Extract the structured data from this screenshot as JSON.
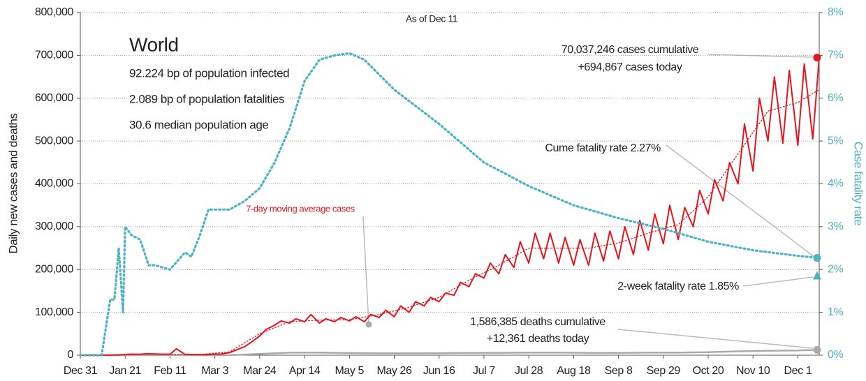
{
  "chart_data": {
    "type": "line",
    "subtitle": "As of Dec 11",
    "title": "World",
    "notes": [
      "92.224 bp of population infected",
      "2.089 bp of population fatalities",
      "30.6 median population age"
    ],
    "ylabel": "Daily new cases and deaths",
    "y2label": "Case fatality rate",
    "xlim": [
      0,
      346
    ],
    "xticks": [
      {
        "value": 0,
        "label": "Dec 31"
      },
      {
        "value": 21,
        "label": "Jan 21"
      },
      {
        "value": 42,
        "label": "Feb 11"
      },
      {
        "value": 63,
        "label": "Mar 3"
      },
      {
        "value": 84,
        "label": "Mar 24"
      },
      {
        "value": 105,
        "label": "Apr 14"
      },
      {
        "value": 126,
        "label": "May 5"
      },
      {
        "value": 147,
        "label": "May 26"
      },
      {
        "value": 168,
        "label": "Jun 16"
      },
      {
        "value": 189,
        "label": "Jul 7"
      },
      {
        "value": 210,
        "label": "Jul 28"
      },
      {
        "value": 231,
        "label": "Aug 18"
      },
      {
        "value": 252,
        "label": "Sep 8"
      },
      {
        "value": 273,
        "label": "Sep 29"
      },
      {
        "value": 294,
        "label": "Oct 20"
      },
      {
        "value": 315,
        "label": "Nov 10"
      },
      {
        "value": 336,
        "label": "Dec 1"
      }
    ],
    "ylim": [
      0,
      800000
    ],
    "yticks": [
      0,
      {
        "value": 100000,
        "label": "100,000"
      },
      {
        "value": 200000,
        "label": "200,000"
      },
      {
        "value": 300000,
        "label": "300,000"
      },
      {
        "value": 400000,
        "label": "400,000"
      },
      {
        "value": 500000,
        "label": "500,000"
      },
      {
        "value": 600000,
        "label": "600,000"
      },
      {
        "value": 700000,
        "label": "700,000"
      },
      {
        "value": 800000,
        "label": "800,000"
      }
    ],
    "y2lim": [
      0,
      8
    ],
    "y2ticks": [
      {
        "value": 0,
        "label": "0%"
      },
      {
        "value": 1,
        "label": "1%"
      },
      {
        "value": 2,
        "label": "2%"
      },
      {
        "value": 3,
        "label": "3%"
      },
      {
        "value": 4,
        "label": "4%"
      },
      {
        "value": 5,
        "label": "5%"
      },
      {
        "value": 6,
        "label": "6%"
      },
      {
        "value": 7,
        "label": "7%"
      },
      {
        "value": 8,
        "label": "8%"
      }
    ],
    "grid": true,
    "series": [
      {
        "color": "#aaaaaa",
        "dash": false,
        "width": 2.5,
        "x": [
          0,
          14,
          28,
          42,
          56,
          70,
          84,
          98,
          112,
          126,
          140,
          154,
          168,
          182,
          196,
          210,
          224,
          238,
          252,
          266,
          280,
          294,
          308,
          322,
          336,
          346
        ],
        "values": [
          0,
          0,
          50,
          100,
          50,
          200,
          3000,
          6000,
          6000,
          5000,
          4500,
          4500,
          4800,
          5500,
          5500,
          6000,
          6000,
          5500,
          5500,
          6000,
          6000,
          7000,
          9000,
          10500,
          11000,
          12361
        ]
      },
      {
        "color": "#e8141b",
        "dash": false,
        "width": 2,
        "x": [
          0,
          3,
          7,
          10,
          14,
          17,
          21,
          24,
          28,
          31,
          35,
          38,
          42,
          45,
          49,
          52,
          56,
          59,
          63,
          66,
          70,
          73,
          77,
          80,
          84,
          87,
          91,
          94,
          98,
          101,
          105,
          108,
          112,
          115,
          119,
          122,
          126,
          129,
          133,
          136,
          140,
          143,
          147,
          150,
          154,
          157,
          161,
          164,
          168,
          171,
          175,
          178,
          182,
          185,
          189,
          192,
          196,
          199,
          203,
          206,
          210,
          213,
          217,
          220,
          224,
          227,
          231,
          234,
          238,
          241,
          245,
          248,
          252,
          255,
          259,
          262,
          266,
          269,
          273,
          276,
          280,
          283,
          287,
          290,
          294,
          297,
          301,
          304,
          308,
          311,
          315,
          318,
          322,
          325,
          329,
          332,
          336,
          339,
          343,
          346
        ],
        "values": [
          0,
          0,
          0,
          0,
          100,
          500,
          1500,
          2500,
          2000,
          3500,
          3000,
          2500,
          2000,
          15000,
          2000,
          1500,
          1500,
          1000,
          2500,
          3000,
          6000,
          12000,
          20000,
          30000,
          45000,
          60000,
          70000,
          80000,
          75000,
          85000,
          78000,
          95000,
          75000,
          85000,
          78000,
          88000,
          80000,
          90000,
          78000,
          95000,
          88000,
          105000,
          90000,
          115000,
          100000,
          125000,
          115000,
          135000,
          125000,
          145000,
          140000,
          170000,
          160000,
          190000,
          180000,
          215000,
          190000,
          235000,
          205000,
          265000,
          215000,
          285000,
          225000,
          285000,
          215000,
          275000,
          210000,
          270000,
          210000,
          285000,
          220000,
          290000,
          225000,
          300000,
          235000,
          315000,
          245000,
          330000,
          260000,
          350000,
          270000,
          345000,
          300000,
          385000,
          330000,
          410000,
          360000,
          450000,
          400000,
          540000,
          430000,
          600000,
          500000,
          650000,
          495000,
          665000,
          490000,
          680000,
          505000,
          694867
        ]
      },
      {
        "name": "7-day moving average cases",
        "color": "#e8141b",
        "dash": true,
        "width": 1.3,
        "x": [
          0,
          14,
          28,
          42,
          56,
          70,
          84,
          98,
          112,
          126,
          140,
          154,
          168,
          182,
          196,
          210,
          224,
          238,
          252,
          266,
          280,
          294,
          308,
          322,
          336,
          346
        ],
        "values": [
          0,
          200,
          2500,
          2500,
          1500,
          8000,
          50000,
          78000,
          82000,
          83000,
          95000,
          112000,
          135000,
          175000,
          210000,
          250000,
          250000,
          250000,
          262000,
          285000,
          305000,
          370000,
          470000,
          570000,
          590000,
          620000
        ]
      },
      {
        "color": "#4db3c4",
        "dash": true,
        "width": 3.2,
        "axis": "y2",
        "x": [
          0,
          10,
          14,
          16,
          18,
          20,
          21,
          24,
          28,
          32,
          35,
          42,
          49,
          52,
          56,
          60,
          63,
          70,
          77,
          84,
          91,
          98,
          105,
          112,
          119,
          126,
          133,
          147,
          168,
          189,
          210,
          231,
          252,
          273,
          294,
          315,
          336,
          346
        ],
        "values": [
          0,
          0,
          1.3,
          1.3,
          2.5,
          1.0,
          3.0,
          2.8,
          2.7,
          2.1,
          2.1,
          2.0,
          2.4,
          2.3,
          2.8,
          3.4,
          3.4,
          3.4,
          3.6,
          3.9,
          4.5,
          5.3,
          6.4,
          6.9,
          7.0,
          7.05,
          6.9,
          6.2,
          5.4,
          4.5,
          3.95,
          3.5,
          3.2,
          2.95,
          2.65,
          2.45,
          2.32,
          2.27
        ]
      }
    ],
    "annotations": [
      "70,037,246 cases cumulative",
      "+694,867 cases today",
      "Cume fatality rate 2.27%",
      "2-week fatality rate 1.85%",
      "1,586,385 deaths cumulative",
      "+12,361 deaths today"
    ],
    "end_markers": [
      {
        "value": 694867,
        "color": "#e8141b",
        "shape": "circle"
      },
      {
        "value": 2.27,
        "axis": "y2",
        "color": "#4db3c4",
        "shape": "circle"
      },
      {
        "value": 1.85,
        "axis": "y2",
        "color": "#4db3c4",
        "shape": "triangle"
      },
      {
        "value": 12361,
        "color": "#aaaaaa",
        "shape": "circle"
      }
    ]
  }
}
